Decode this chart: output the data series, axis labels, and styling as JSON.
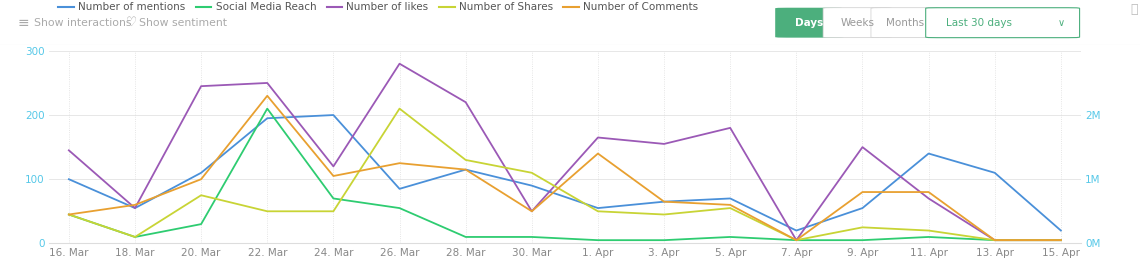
{
  "x_labels": [
    "16. Mar",
    "18. Mar",
    "20. Mar",
    "22. Mar",
    "24. Mar",
    "26. Mar",
    "28. Mar",
    "30. Mar",
    "1. Apr",
    "3. Apr",
    "5. Apr",
    "7. Apr",
    "9. Apr",
    "11. Apr",
    "13. Apr",
    "15. Apr"
  ],
  "mentions": [
    100,
    55,
    110,
    195,
    200,
    85,
    115,
    90,
    55,
    65,
    70,
    20,
    55,
    140,
    110,
    20
  ],
  "reach": [
    45,
    10,
    30,
    210,
    70,
    55,
    10,
    10,
    5,
    5,
    10,
    5,
    5,
    10,
    5,
    5
  ],
  "likes": [
    145,
    55,
    245,
    250,
    120,
    280,
    220,
    50,
    165,
    155,
    180,
    5,
    150,
    70,
    5,
    5
  ],
  "shares": [
    45,
    10,
    75,
    50,
    50,
    210,
    130,
    110,
    50,
    45,
    55,
    5,
    25,
    20,
    5,
    5
  ],
  "comments": [
    45,
    60,
    100,
    230,
    105,
    125,
    115,
    50,
    140,
    65,
    60,
    5,
    80,
    80,
    5,
    5
  ],
  "mentions_color": "#4a90d9",
  "reach_color": "#2ecc71",
  "likes_color": "#9b59b6",
  "shares_color": "#c8d435",
  "comments_color": "#e8a030",
  "ylim": [
    0,
    300
  ],
  "yticks_left": [
    0,
    100,
    200,
    300
  ],
  "yticks_right": [
    0,
    100,
    200
  ],
  "yticks_right_labels": [
    "0M",
    "1M",
    "2M"
  ],
  "grid_color": "#dddddd",
  "grid_style": "dotted",
  "header_bg": "#f8f8f8",
  "days_btn_color": "#4caf7d",
  "days_btn_text": "Days",
  "weeks_btn_text": "Weeks",
  "months_btn_text": "Months",
  "dropdown_text": "Last 30 days",
  "show_interactions_text": "Show interactions",
  "show_sentiment_text": "Show sentiment",
  "legend_entries": [
    "Number of mentions",
    "Social Media Reach",
    "Number of likes",
    "Number of Shares",
    "Number of Comments"
  ],
  "tick_color": "#56c8e8",
  "tick_fontsize": 7.5,
  "axis_label_color": "#888888",
  "line_width": 1.3
}
